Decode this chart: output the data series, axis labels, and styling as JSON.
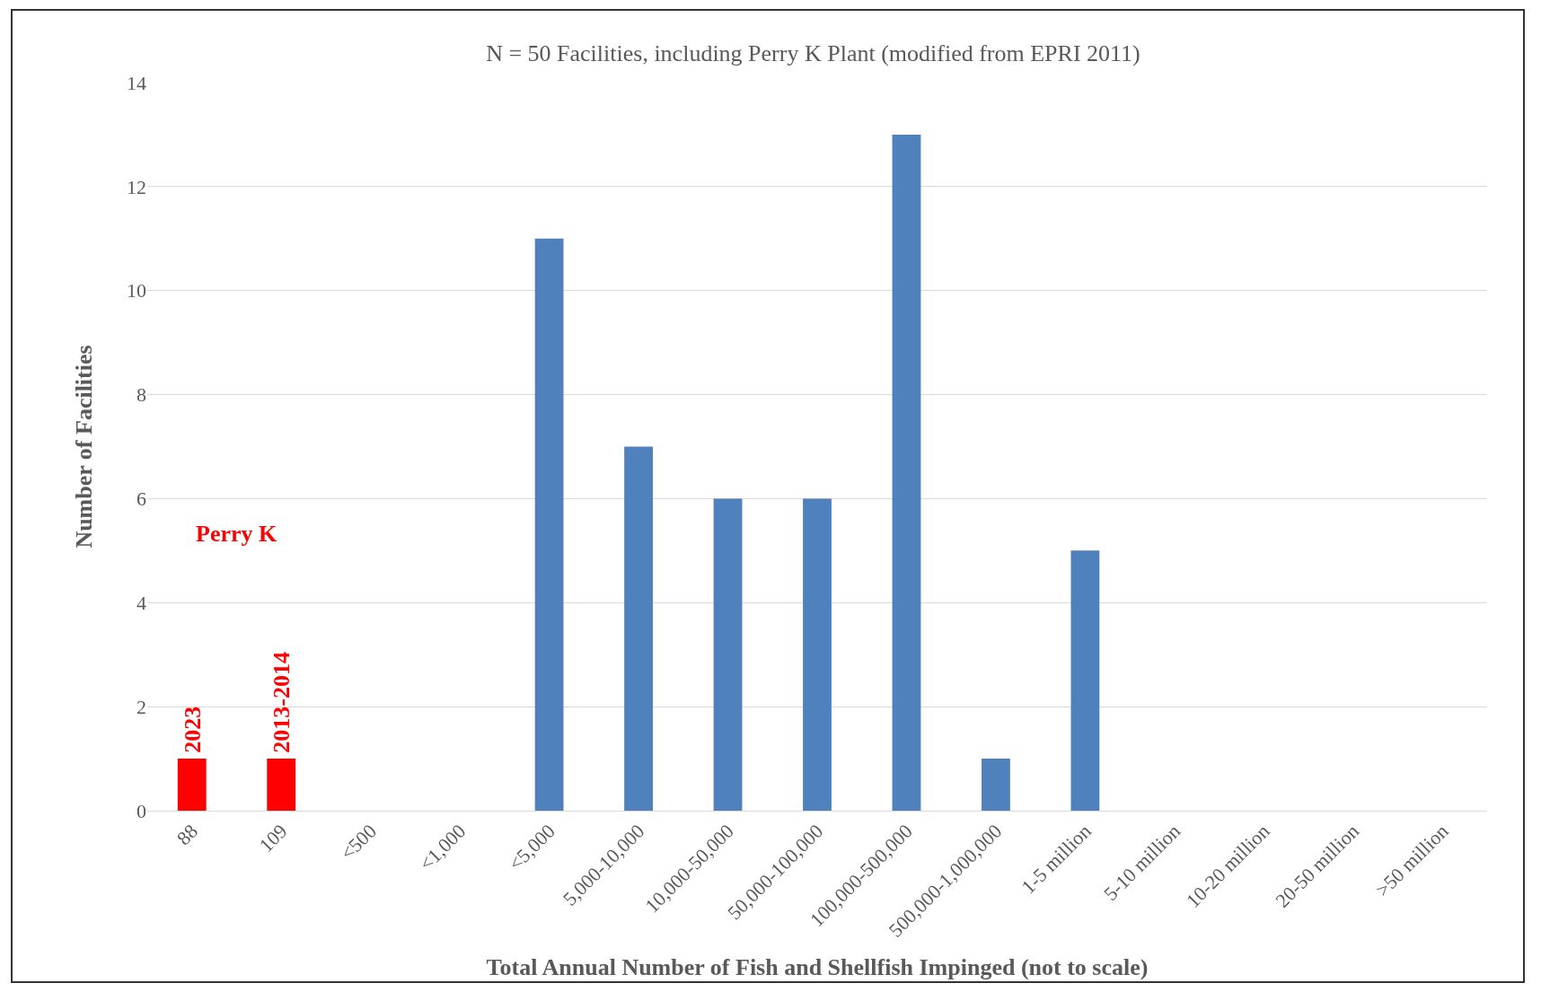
{
  "chart_data": {
    "type": "bar",
    "title": "N = 50 Facilities, including Perry K Plant (modified from EPRI 2011)",
    "xlabel": "Total Annual Number of Fish and Shellfish Impinged (not to scale)",
    "ylabel": "Number of Facilities",
    "categories": [
      "88",
      "109",
      "<500",
      "<1,000",
      "<5,000",
      "5,000-10,000",
      "10,000-50,000",
      "50,000-100,000",
      "100,000-500,000",
      "500,000-1,000,000",
      "1-5 million",
      "5-10 million",
      "10-20 million",
      "20-50 million",
      ">50 million"
    ],
    "values": [
      1,
      1,
      0,
      0,
      11,
      7,
      6,
      6,
      13,
      1,
      5,
      0,
      0,
      0,
      0
    ],
    "colors": [
      "#ff0000",
      "#ff0000",
      "#4f81bd",
      "#4f81bd",
      "#4f81bd",
      "#4f81bd",
      "#4f81bd",
      "#4f81bd",
      "#4f81bd",
      "#4f81bd",
      "#4f81bd",
      "#4f81bd",
      "#4f81bd",
      "#4f81bd",
      "#4f81bd"
    ],
    "ylim": [
      0,
      14
    ],
    "yticks": [
      0,
      2,
      4,
      6,
      8,
      10,
      12,
      14
    ],
    "grid": "y",
    "annotations": [
      "Perry K",
      {
        "text": "2023",
        "x": "88",
        "y": 1
      },
      {
        "text": "2013-2014",
        "x": "109",
        "y": 1
      }
    ]
  }
}
